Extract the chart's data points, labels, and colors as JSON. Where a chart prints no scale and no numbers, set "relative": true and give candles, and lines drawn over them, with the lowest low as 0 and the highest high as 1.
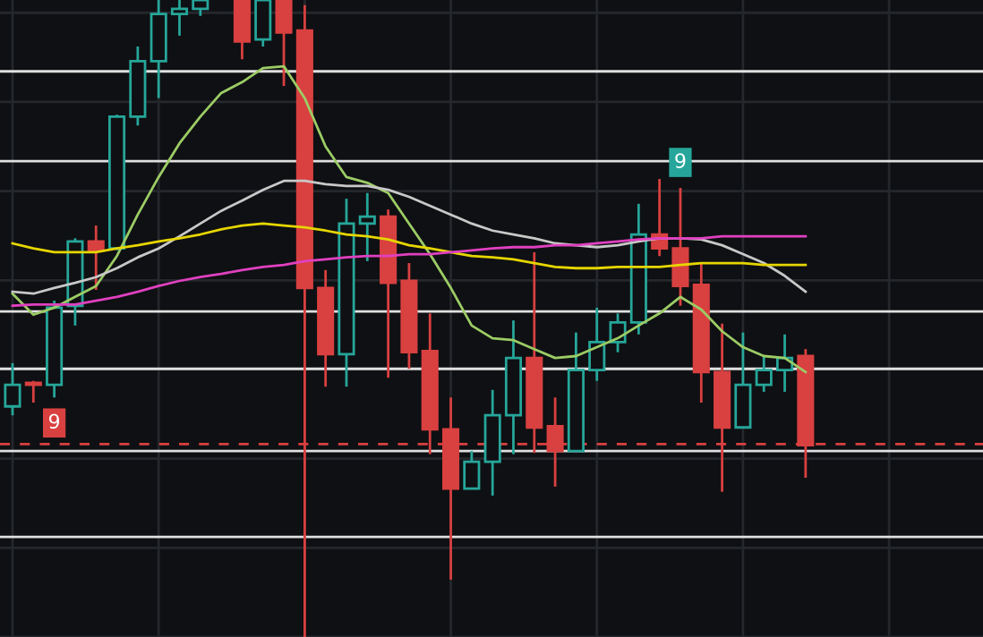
{
  "chart_data": {
    "type": "candlestick",
    "relative": true,
    "grid": true,
    "categories": [
      null,
      null,
      null,
      null,
      null,
      null,
      null,
      null,
      null,
      null,
      null,
      null,
      null,
      null,
      null,
      null,
      null,
      null,
      null,
      null,
      null,
      null,
      null,
      null,
      null,
      null,
      null,
      null,
      null,
      null,
      null,
      null,
      null,
      null,
      null,
      null,
      null,
      null,
      null
    ],
    "ohlc": [
      [
        0.362,
        0.43,
        0.348,
        0.396
      ],
      [
        0.399,
        0.402,
        0.368,
        0.396
      ],
      [
        0.396,
        0.528,
        0.376,
        0.517
      ],
      [
        0.52,
        0.626,
        0.489,
        0.621
      ],
      [
        0.621,
        0.646,
        0.545,
        0.607
      ],
      [
        0.61,
        0.82,
        0.607,
        0.817
      ],
      [
        0.817,
        0.927,
        0.803,
        0.904
      ],
      [
        0.904,
        1,
        0.846,
        0.978
      ],
      [
        0.978,
        1,
        0.944,
        0.986
      ],
      [
        0.986,
        1,
        0.975,
        1
      ],
      null,
      [
        1,
        1,
        0.907,
        0.935
      ],
      [
        0.938,
        1,
        0.927,
        1
      ],
      [
        1,
        1,
        0.865,
        0.949
      ],
      [
        0.952,
        0.992,
        0,
        0.548
      ],
      [
        0.548,
        0.576,
        0.393,
        0.444
      ],
      [
        0.444,
        0.688,
        0.393,
        0.649
      ],
      [
        0.649,
        0.697,
        0.59,
        0.66
      ],
      [
        0.66,
        0.671,
        0.407,
        0.556
      ],
      [
        0.559,
        0.587,
        0.421,
        0.447
      ],
      [
        0.449,
        0.508,
        0.287,
        0.326
      ],
      [
        0.326,
        0.376,
        0.09,
        0.233
      ],
      [
        0.233,
        0.292,
        0.233,
        0.275
      ],
      [
        0.275,
        0.388,
        0.222,
        0.348
      ],
      [
        0.348,
        0.497,
        0.287,
        0.438
      ],
      [
        0.438,
        0.604,
        0.289,
        0.329
      ],
      [
        0.331,
        0.376,
        0.236,
        0.292
      ],
      [
        0.292,
        0.478,
        0.292,
        0.419
      ],
      [
        0.419,
        0.517,
        0.402,
        0.463
      ],
      [
        0.463,
        0.508,
        0.447,
        0.494
      ],
      [
        0.494,
        0.68,
        0.475,
        0.632
      ],
      [
        0.632,
        0.719,
        0.598,
        0.61
      ],
      [
        0.61,
        0.705,
        0.52,
        0.551
      ],
      [
        0.553,
        0.587,
        0.368,
        0.416
      ],
      [
        0.416,
        0.492,
        0.228,
        0.329
      ],
      [
        0.329,
        0.478,
        0.329,
        0.396
      ],
      [
        0.396,
        0.441,
        0.385,
        0.419
      ],
      [
        0.419,
        0.475,
        0.385,
        0.438
      ],
      [
        0.441,
        0.452,
        0.25,
        0.301
      ]
    ],
    "colors": [
      "#26a69a",
      "#d94040",
      "#26a69a",
      "#26a69a",
      "#d94040",
      "#26a69a",
      "#26a69a",
      "#26a69a",
      "#26a69a",
      "#26a69a",
      null,
      "#d94040",
      "#26a69a",
      "#d94040",
      "#d94040",
      "#d94040",
      "#26a69a",
      "#26a69a",
      "#d94040",
      "#d94040",
      "#d94040",
      "#d94040",
      "#26a69a",
      "#26a69a",
      "#26a69a",
      "#d94040",
      "#d94040",
      "#26a69a",
      "#26a69a",
      "#26a69a",
      "#26a69a",
      "#d94040",
      "#d94040",
      "#d94040",
      "#d94040",
      "#26a69a",
      "#26a69a",
      "#26a69a",
      "#d94040"
    ],
    "series": [
      {
        "type": "line",
        "color": "#9ccc65",
        "values": [
          0.539,
          0.506,
          0.517,
          0.534,
          0.551,
          0.598,
          0.663,
          0.722,
          0.775,
          0.817,
          0.854,
          0.871,
          0.893,
          0.896,
          0.846,
          0.77,
          0.722,
          0.713,
          0.697,
          0.649,
          0.601,
          0.548,
          0.489,
          0.469,
          0.466,
          0.452,
          0.438,
          0.441,
          0.455,
          0.469,
          0.489,
          0.508,
          0.534,
          0.514,
          0.48,
          0.455,
          0.441,
          0.438,
          0.416
        ]
      },
      {
        "type": "line",
        "color": "#c8c8c8",
        "values": [
          0.542,
          0.539,
          0.548,
          0.556,
          0.565,
          0.579,
          0.596,
          0.61,
          0.629,
          0.649,
          0.669,
          0.685,
          0.702,
          0.716,
          0.716,
          0.711,
          0.708,
          0.708,
          0.702,
          0.691,
          0.677,
          0.663,
          0.649,
          0.638,
          0.632,
          0.626,
          0.618,
          0.615,
          0.612,
          0.615,
          0.621,
          0.626,
          0.626,
          0.624,
          0.615,
          0.601,
          0.587,
          0.567,
          0.542
        ]
      },
      {
        "type": "line",
        "color": "#e6d600",
        "values": [
          0.618,
          0.61,
          0.604,
          0.604,
          0.604,
          0.61,
          0.615,
          0.621,
          0.626,
          0.632,
          0.64,
          0.646,
          0.649,
          0.646,
          0.643,
          0.638,
          0.632,
          0.629,
          0.624,
          0.615,
          0.61,
          0.604,
          0.598,
          0.596,
          0.593,
          0.587,
          0.581,
          0.579,
          0.579,
          0.581,
          0.581,
          0.581,
          0.584,
          0.587,
          0.587,
          0.587,
          0.584,
          0.584,
          0.584
        ]
      },
      {
        "type": "line",
        "color": "#e040c0",
        "values": [
          0.52,
          0.522,
          0.522,
          0.522,
          0.528,
          0.534,
          0.542,
          0.551,
          0.559,
          0.565,
          0.57,
          0.576,
          0.581,
          0.584,
          0.59,
          0.593,
          0.596,
          0.598,
          0.598,
          0.601,
          0.601,
          0.604,
          0.607,
          0.61,
          0.612,
          0.612,
          0.615,
          0.615,
          0.618,
          0.621,
          0.624,
          0.626,
          0.626,
          0.626,
          0.629,
          0.629,
          0.629,
          0.629,
          0.629
        ]
      }
    ],
    "ref_lines": [
      {
        "axis": "y",
        "value": 0.888,
        "color": "#e0e0e0"
      },
      {
        "axis": "y",
        "value": 0.747,
        "color": "#e0e0e0"
      },
      {
        "axis": "y",
        "value": 0.511,
        "color": "#e0e0e0"
      },
      {
        "axis": "y",
        "value": 0.421,
        "color": "#e0e0e0"
      },
      {
        "axis": "y",
        "value": 0.292,
        "color": "#e0e0e0"
      },
      {
        "axis": "y",
        "value": 0.157,
        "color": "#e0e0e0"
      },
      {
        "axis": "y",
        "value": 0.303,
        "color": "#d94040",
        "line_style": "dashed"
      }
    ],
    "annotations": [
      "9",
      "9"
    ]
  }
}
